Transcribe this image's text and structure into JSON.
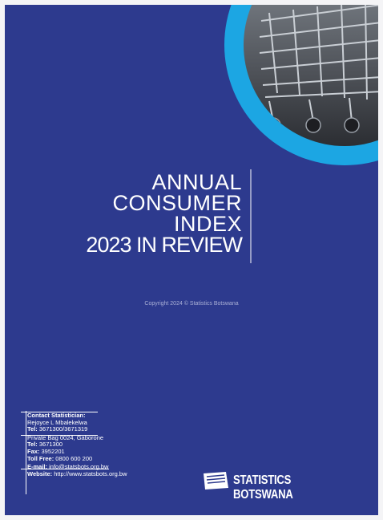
{
  "title": [
    "ANNUAL",
    "CONSUMER",
    "INDEX",
    "2023 IN REVIEW"
  ],
  "copyright": "Copyright 2024 © Statistics Botswana",
  "contact": {
    "heading": "Contact Statistician:",
    "name": "Rejoyce L Mbalekelwa",
    "tel": {
      "label": "Tel:",
      "value": "3671300/3671319"
    }
  },
  "office": {
    "address": "Private Bag 0024, Gaborone",
    "tel": {
      "label": "Tel:",
      "value": "3671300"
    },
    "fax": {
      "label": "Fax:",
      "value": "3952201"
    },
    "tollfree": {
      "label": "Toll Free:",
      "value": "0800 600 200"
    },
    "email": {
      "label": "E-mail:",
      "value": "info@statsbots.org.bw"
    },
    "website": {
      "label": "Website:",
      "value": "http://www.statsbots.org.bw"
    }
  },
  "logo": "STATISTICS BOTSWANA"
}
